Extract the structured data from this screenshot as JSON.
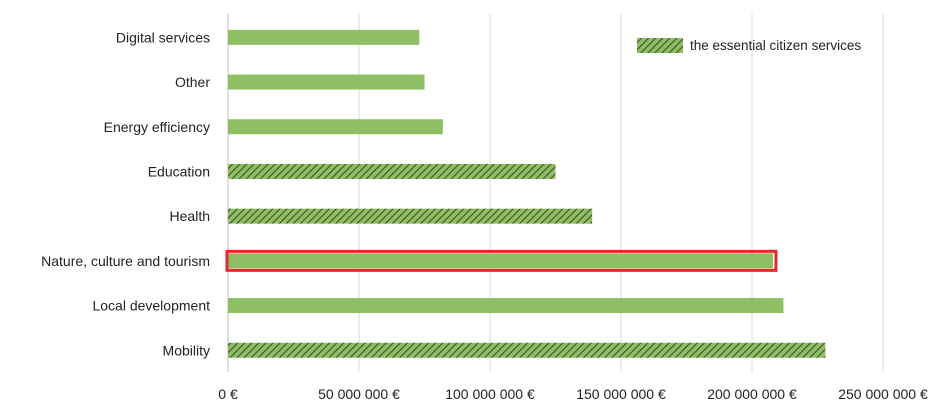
{
  "chart_data": {
    "type": "bar",
    "orientation": "horizontal",
    "categories": [
      "Digital services",
      "Other",
      "Energy efficiency",
      "Education",
      "Health",
      "Nature, culture and tourism",
      "Local development",
      "Mobility"
    ],
    "values": [
      73000000,
      75000000,
      82000000,
      125000000,
      139000000,
      208000000,
      212000000,
      228000000
    ],
    "essential": [
      false,
      false,
      false,
      true,
      true,
      false,
      false,
      true
    ],
    "highlighted": "Nature, culture and tourism",
    "xlim": [
      0,
      250000000
    ],
    "x_ticks": [
      0,
      50000000,
      100000000,
      150000000,
      200000000,
      250000000
    ],
    "x_tick_labels": [
      "0 €",
      "50 000 000 €",
      "100 000 000 €",
      "150 000 000 €",
      "200 000 000 €",
      "250 000 000 €"
    ],
    "grid": "vertical",
    "legend": {
      "label": "the essential citizen services",
      "placement": "top-right"
    },
    "colors": {
      "bar": "#8fbf63",
      "hatch": "#3f4f2c",
      "highlight": "#e8262b",
      "grid": "#d9d9d9"
    }
  }
}
